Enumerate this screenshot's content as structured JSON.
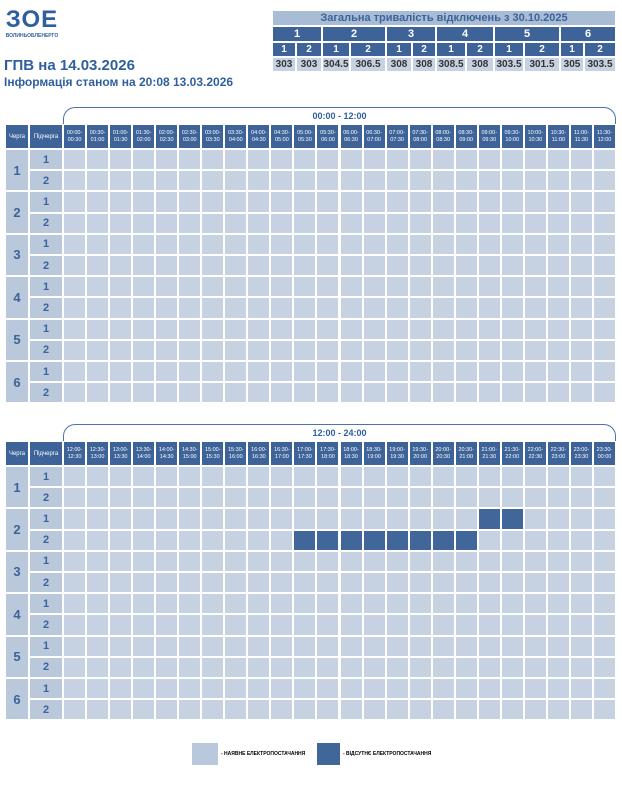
{
  "logo": {
    "mark": "ЗОЕ",
    "name": "ВОЛИНЬОБЛЕНЕРГО"
  },
  "title": "ГПВ на 14.03.2026",
  "info": "Інформація станом на 20:08 13.03.2026",
  "summary": {
    "title": "Загальна тривалість відключень з 30.10.2025",
    "queues": [
      "1",
      "2",
      "3",
      "4",
      "5",
      "6"
    ],
    "subqueues": [
      "1",
      "2",
      "1",
      "2",
      "1",
      "2",
      "1",
      "2",
      "1",
      "2",
      "1",
      "2"
    ],
    "values": [
      "303",
      "303",
      "304.5",
      "306.5",
      "308",
      "308",
      "308.5",
      "308",
      "303.5",
      "301.5",
      "305",
      "303.5"
    ]
  },
  "schedules": [
    {
      "period": "00:00 - 12:00",
      "queue_header": "Черга",
      "subqueue_header": "Підчерга",
      "slots": [
        "00:00-00:30",
        "00:30-01:00",
        "01:00-01:30",
        "01:30-02:00",
        "02:00-02:30",
        "02:30-03:00",
        "03:00-03:30",
        "03:30-04:00",
        "04:00-04:30",
        "04:30-05:00",
        "05:00-05:30",
        "05:30-06:00",
        "06:00-06:30",
        "06:30-07:00",
        "07:00-07:30",
        "07:30-08:00",
        "08:00-08:30",
        "08:30-09:00",
        "09:00-09:30",
        "09:30-10:00",
        "10:00-10:30",
        "10:30-11:00",
        "11:00-11:30",
        "11:30-12:00"
      ],
      "queues": [
        {
          "label": "1",
          "subqueues": [
            {
              "label": "1",
              "off_slots": []
            },
            {
              "label": "2",
              "off_slots": []
            }
          ]
        },
        {
          "label": "2",
          "subqueues": [
            {
              "label": "1",
              "off_slots": []
            },
            {
              "label": "2",
              "off_slots": []
            }
          ]
        },
        {
          "label": "3",
          "subqueues": [
            {
              "label": "1",
              "off_slots": []
            },
            {
              "label": "2",
              "off_slots": []
            }
          ]
        },
        {
          "label": "4",
          "subqueues": [
            {
              "label": "1",
              "off_slots": []
            },
            {
              "label": "2",
              "off_slots": []
            }
          ]
        },
        {
          "label": "5",
          "subqueues": [
            {
              "label": "1",
              "off_slots": []
            },
            {
              "label": "2",
              "off_slots": []
            }
          ]
        },
        {
          "label": "6",
          "subqueues": [
            {
              "label": "1",
              "off_slots": []
            },
            {
              "label": "2",
              "off_slots": []
            }
          ]
        }
      ]
    },
    {
      "period": "12:00 - 24:00",
      "queue_header": "Черга",
      "subqueue_header": "Підчерга",
      "slots": [
        "12:00-12:30",
        "12:30-13:00",
        "13:00-13:30",
        "13:30-14:00",
        "14:00-14:30",
        "14:30-15:00",
        "15:00-15:30",
        "15:30-16:00",
        "16:00-16:30",
        "16:30-17:00",
        "17:00-17:30",
        "17:30-18:00",
        "18:00-18:30",
        "18:30-19:00",
        "19:00-19:30",
        "19:30-20:00",
        "20:00-20:30",
        "20:30-21:00",
        "21:00-21:30",
        "21:30-22:00",
        "22:00-22:30",
        "22:30-23:00",
        "23:00-23:30",
        "23:30-00:00"
      ],
      "queues": [
        {
          "label": "1",
          "subqueues": [
            {
              "label": "1",
              "off_slots": []
            },
            {
              "label": "2",
              "off_slots": []
            }
          ]
        },
        {
          "label": "2",
          "subqueues": [
            {
              "label": "1",
              "off_slots": [
                18,
                19
              ]
            },
            {
              "label": "2",
              "off_slots": [
                10,
                11,
                12,
                13,
                14,
                15,
                16,
                17
              ]
            }
          ]
        },
        {
          "label": "3",
          "subqueues": [
            {
              "label": "1",
              "off_slots": []
            },
            {
              "label": "2",
              "off_slots": []
            }
          ]
        },
        {
          "label": "4",
          "subqueues": [
            {
              "label": "1",
              "off_slots": []
            },
            {
              "label": "2",
              "off_slots": []
            }
          ]
        },
        {
          "label": "5",
          "subqueues": [
            {
              "label": "1",
              "off_slots": []
            },
            {
              "label": "2",
              "off_slots": []
            }
          ]
        },
        {
          "label": "6",
          "subqueues": [
            {
              "label": "1",
              "off_slots": []
            },
            {
              "label": "2",
              "off_slots": []
            }
          ]
        }
      ]
    }
  ],
  "legend": {
    "on": "- НАЯВНЕ ЕЛЕКТРОПОСТАЧАННЯ",
    "off": "- ВІДСУТНЄ ЕЛЕКТРОПОСТАЧАННЯ"
  }
}
